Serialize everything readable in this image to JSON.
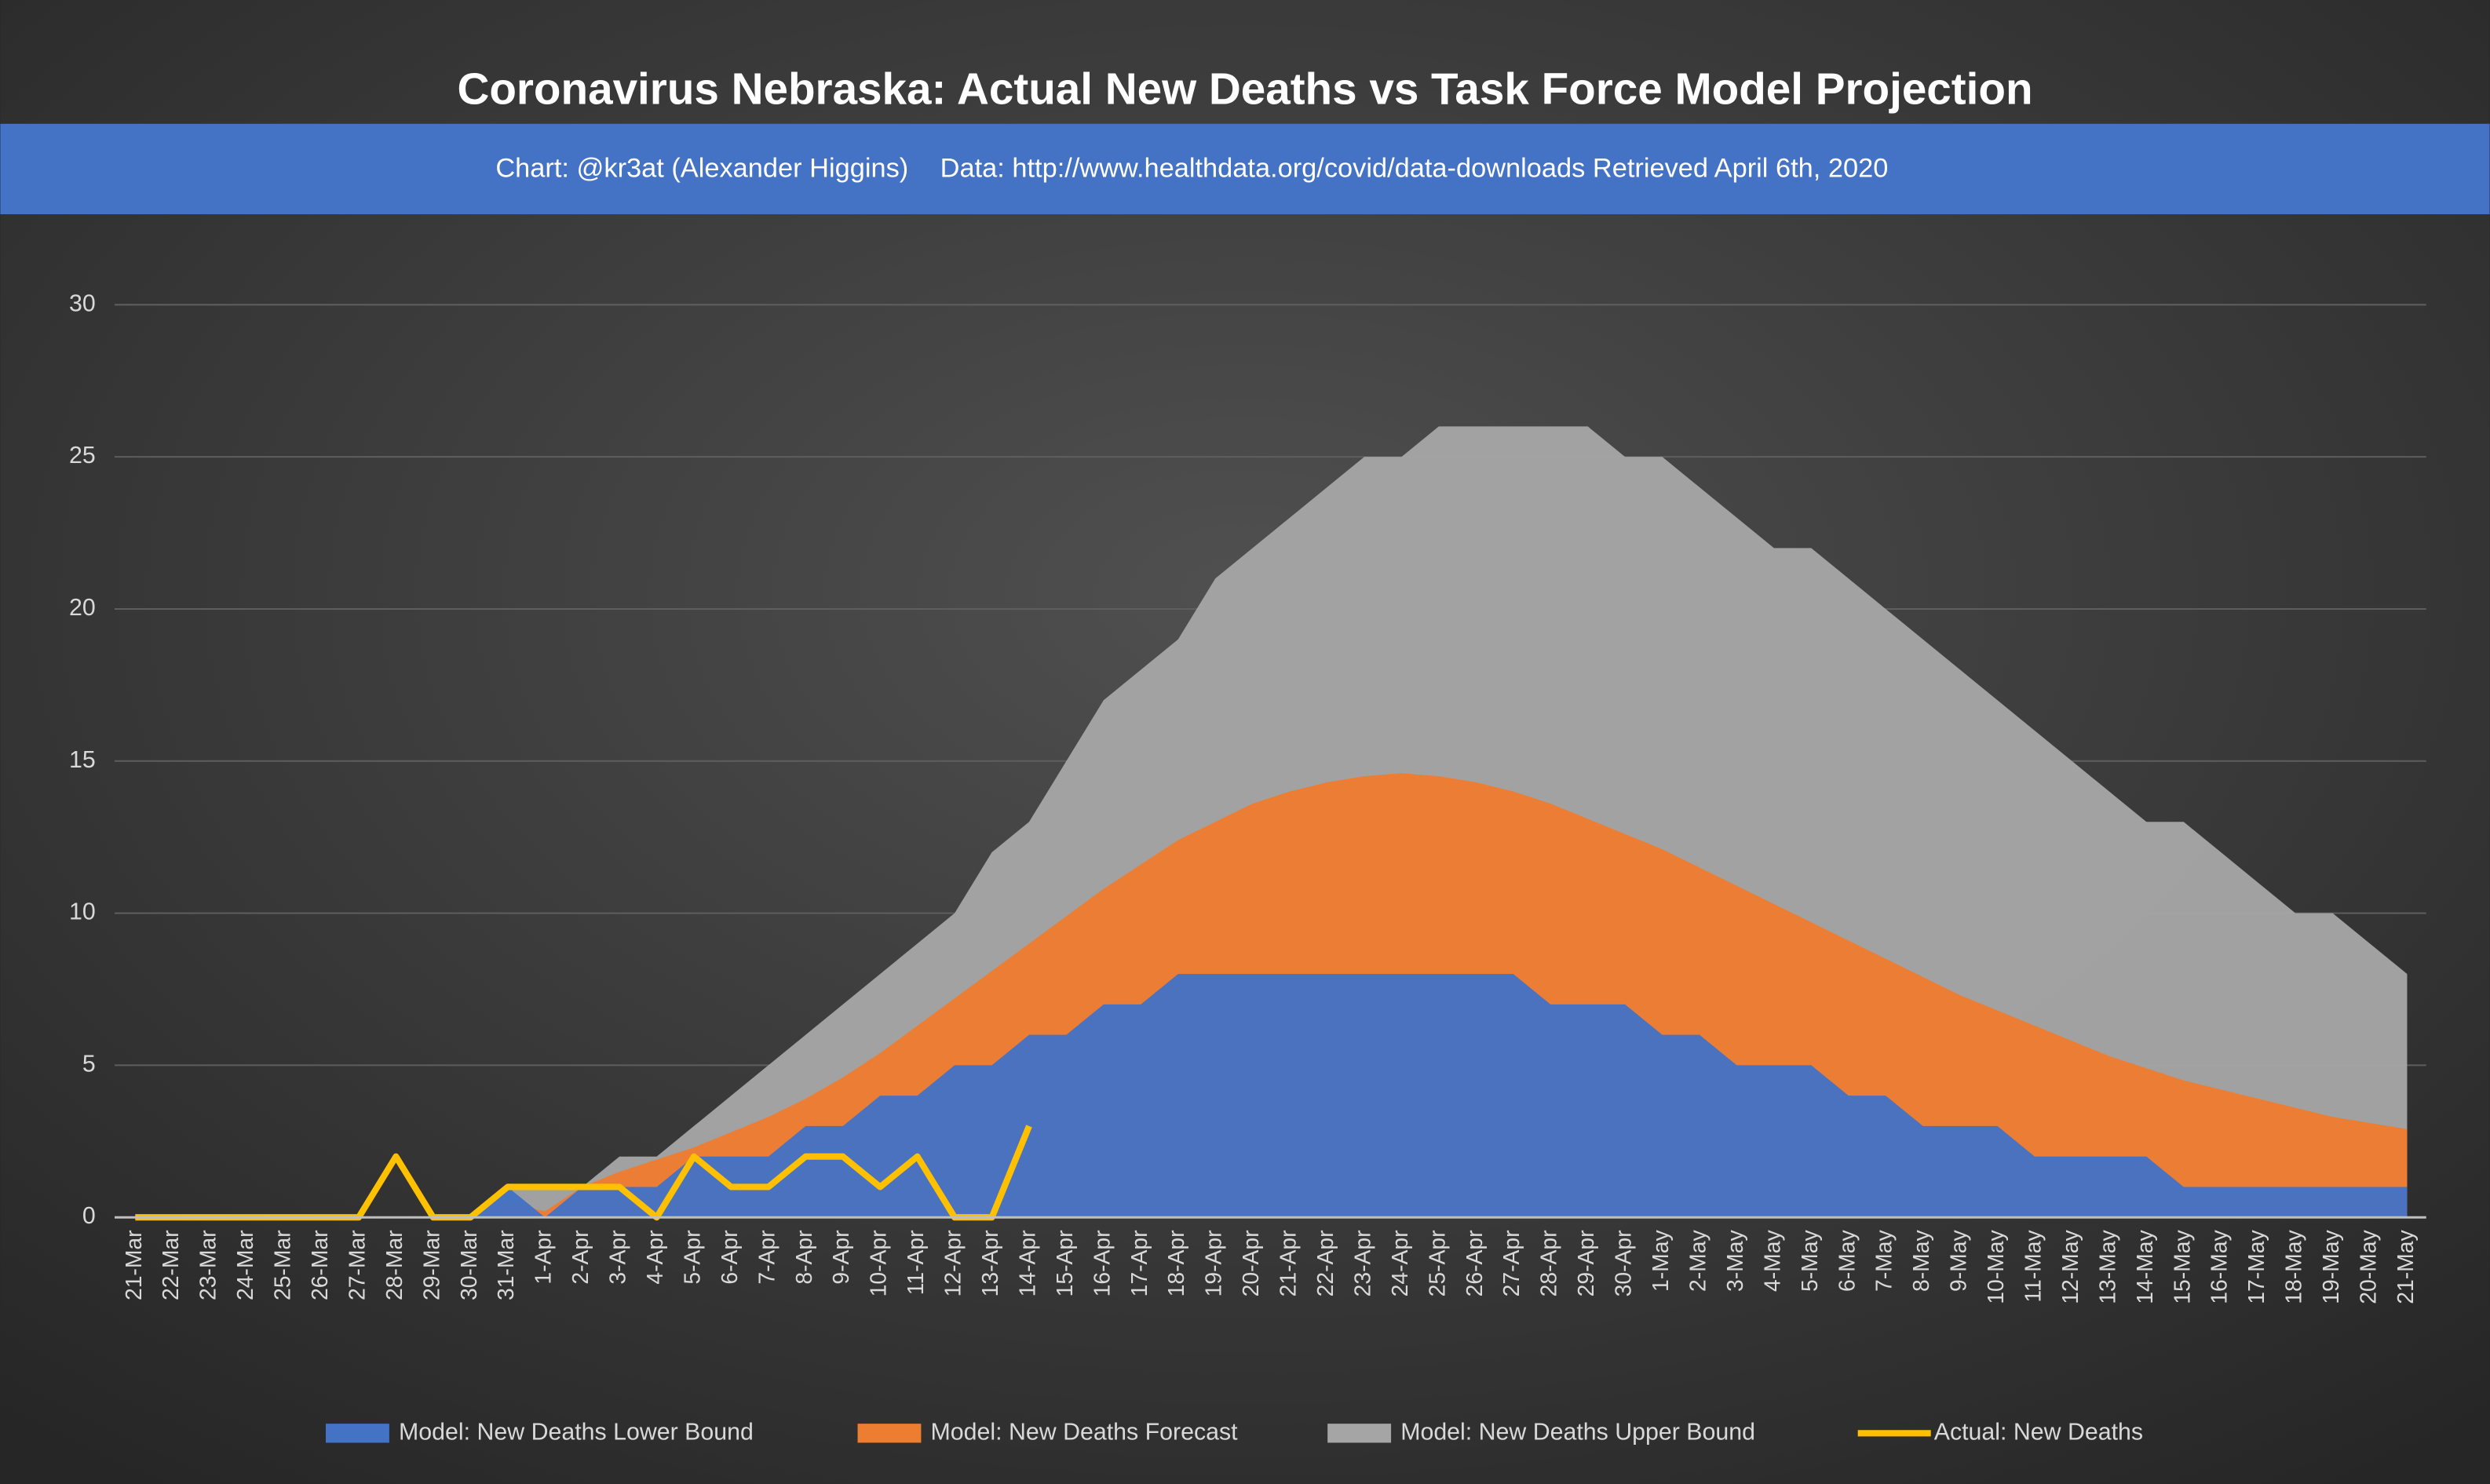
{
  "chart_data": {
    "type": "area",
    "title": "Coronavirus Nebraska: Actual New Deaths vs Task Force Model Projection",
    "subtitle": "Chart: @kr3at (Alexander Higgins)",
    "source": "Data: http://www.healthdata.org/covid/data-downloads Retrieved April 6th, 2020",
    "categories": [
      "21-Mar",
      "22-Mar",
      "23-Mar",
      "24-Mar",
      "25-Mar",
      "26-Mar",
      "27-Mar",
      "28-Mar",
      "29-Mar",
      "30-Mar",
      "31-Mar",
      "1-Apr",
      "2-Apr",
      "3-Apr",
      "4-Apr",
      "5-Apr",
      "6-Apr",
      "7-Apr",
      "8-Apr",
      "9-Apr",
      "10-Apr",
      "11-Apr",
      "12-Apr",
      "13-Apr",
      "14-Apr",
      "15-Apr",
      "16-Apr",
      "17-Apr",
      "18-Apr",
      "19-Apr",
      "20-Apr",
      "21-Apr",
      "22-Apr",
      "23-Apr",
      "24-Apr",
      "25-Apr",
      "26-Apr",
      "27-Apr",
      "28-Apr",
      "29-Apr",
      "30-Apr",
      "1-May",
      "2-May",
      "3-May",
      "4-May",
      "5-May",
      "6-May",
      "7-May",
      "8-May",
      "9-May",
      "10-May",
      "11-May",
      "12-May",
      "13-May",
      "14-May",
      "15-May",
      "16-May",
      "17-May",
      "18-May",
      "19-May",
      "20-May",
      "21-May"
    ],
    "series": [
      {
        "name": "Model: New Deaths Upper Bound",
        "color": "#a5a5a5",
        "kind": "area",
        "values": [
          0,
          0,
          0,
          0,
          0,
          0,
          0,
          0,
          0,
          0,
          1,
          1,
          1,
          2,
          2,
          3,
          4,
          5,
          6,
          7,
          8,
          9,
          10,
          12,
          13,
          15,
          17,
          18,
          19,
          21,
          22,
          23,
          24,
          25,
          25,
          26,
          26,
          26,
          26,
          26,
          25,
          25,
          24,
          23,
          22,
          22,
          21,
          20,
          19,
          18,
          17,
          16,
          15,
          14,
          13,
          13,
          12,
          11,
          10,
          10,
          9,
          8
        ]
      },
      {
        "name": "Model: New Deaths Forecast",
        "color": "#ed7d31",
        "kind": "area",
        "values": [
          0,
          0,
          0,
          0,
          0,
          0,
          0,
          0,
          0,
          0,
          0.5,
          0.2,
          1,
          1.5,
          1.9,
          2.3,
          2.8,
          3.3,
          3.9,
          4.6,
          5.4,
          6.3,
          7.2,
          8.1,
          9,
          9.9,
          10.8,
          11.6,
          12.4,
          13,
          13.6,
          14,
          14.3,
          14.5,
          14.6,
          14.5,
          14.3,
          14,
          13.6,
          13.1,
          12.6,
          12.1,
          11.5,
          10.9,
          10.3,
          9.7,
          9.1,
          8.5,
          7.9,
          7.3,
          6.8,
          6.3,
          5.8,
          5.3,
          4.9,
          4.5,
          4.2,
          3.9,
          3.6,
          3.3,
          3.1,
          2.9
        ]
      },
      {
        "name": "Model: New Deaths Lower Bound",
        "color": "#4472c4",
        "kind": "area",
        "values": [
          0,
          0,
          0,
          0,
          0,
          0,
          0,
          0,
          0,
          0,
          1,
          0,
          1,
          1,
          1,
          2,
          2,
          2,
          3,
          3,
          4,
          4,
          5,
          5,
          6,
          6,
          7,
          7,
          8,
          8,
          8,
          8,
          8,
          8,
          8,
          8,
          8,
          8,
          7,
          7,
          7,
          6,
          6,
          5,
          5,
          5,
          4,
          4,
          3,
          3,
          3,
          2,
          2,
          2,
          2,
          1,
          1,
          1,
          1,
          1,
          1,
          1
        ]
      },
      {
        "name": "Actual: New Deaths",
        "color": "#ffc000",
        "kind": "line",
        "values": [
          0,
          0,
          0,
          0,
          0,
          0,
          0,
          2,
          0,
          0,
          1,
          1,
          1,
          1,
          0,
          2,
          1,
          1,
          2,
          2,
          1,
          2,
          0,
          0,
          3,
          null,
          null,
          null,
          null,
          null,
          null,
          null,
          null,
          null,
          null,
          null,
          null,
          null,
          null,
          null,
          null,
          null,
          null,
          null,
          null,
          null,
          null,
          null,
          null,
          null,
          null,
          null,
          null,
          null,
          null,
          null,
          null,
          null,
          null,
          null,
          null,
          null
        ]
      }
    ],
    "legend_order": [
      2,
      1,
      0,
      3
    ],
    "ylim": [
      0,
      30
    ],
    "yticks": [
      0,
      5,
      10,
      15,
      20,
      25,
      30
    ],
    "grid": true
  }
}
